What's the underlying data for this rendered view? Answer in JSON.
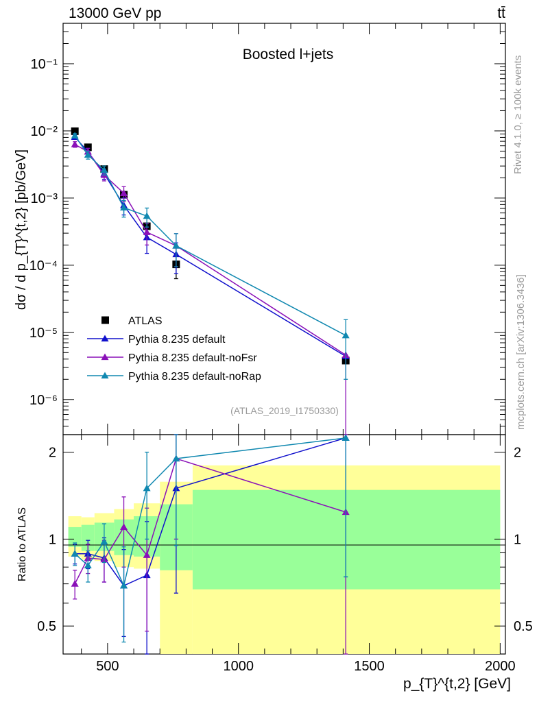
{
  "header": {
    "energy_label": "13000 GeV pp",
    "process_label": "tt̄"
  },
  "side_labels": {
    "rivet": "Rivet 4.1.0, ≥ 100k events",
    "mcplots": "mcplots.cern.ch [arXiv:1306.3436]"
  },
  "chart_data": [
    {
      "type": "scatter",
      "panel": "main",
      "title": "Boosted l+jets",
      "analysis_label": "(ATLAS_2019_I1750330)",
      "ylabel": "dσ / d p_{T}^{t,2} [pb/GeV]",
      "yscale": "log",
      "ylim": [
        3e-07,
        0.4
      ],
      "xlim": [
        330,
        2020
      ],
      "ytick_labels": [
        "10⁻⁶",
        "10⁻⁵",
        "10⁻⁴",
        "10⁻³",
        "10⁻²",
        "10⁻¹"
      ],
      "ytick_values": [
        1e-06,
        1e-05,
        0.0001,
        0.001,
        0.01,
        0.1
      ],
      "legend_position": "bottom-left",
      "series": [
        {
          "name": "ATLAS",
          "color": "#000000",
          "marker": "square",
          "x": [
            375,
            425,
            487,
            562,
            650,
            762,
            1410
          ],
          "y": [
            0.0099,
            0.0057,
            0.0027,
            0.00112,
            0.00038,
            0.000103,
            3.8e-06
          ],
          "err_lo": [
            0.0004,
            0.00025,
            0.00015,
            8e-05,
            4e-05,
            4e-05,
            0
          ],
          "err_hi": [
            0.0004,
            0.00025,
            0.00015,
            8e-05,
            4e-05,
            4e-05,
            0
          ]
        },
        {
          "name": "Pythia 8.235 default",
          "color": "#1010cc",
          "marker": "triangle",
          "x": [
            375,
            425,
            487,
            562,
            650,
            762,
            1410
          ],
          "y": [
            0.0081,
            0.0049,
            0.0023,
            0.00078,
            0.00026,
            0.000145,
            4.4e-06
          ],
          "err_lo": [
            0.0006,
            0.0006,
            0.0004,
            0.00022,
            0.00011,
            7e-05,
            0
          ],
          "err_hi": [
            0.0006,
            0.0006,
            0.0004,
            0.00022,
            0.00011,
            7e-05,
            0
          ]
        },
        {
          "name": "Pythia 8.235 default-noFsr",
          "color": "#8a10b8",
          "marker": "triangle",
          "x": [
            375,
            425,
            487,
            562,
            650,
            762,
            1410
          ],
          "y": [
            0.0063,
            0.0049,
            0.0022,
            0.00118,
            0.00031,
            0.000195,
            4.6e-06
          ],
          "err_lo": [
            0.0006,
            0.0006,
            0.0004,
            0.0003,
            0.00011,
            0.0001,
            4.5e-06
          ],
          "err_hi": [
            0.0006,
            0.0006,
            0.0004,
            0.0003,
            0.00011,
            0.0001,
            0
          ]
        },
        {
          "name": "Pythia 8.235 default-noRap",
          "color": "#1088b0",
          "marker": "triangle",
          "x": [
            375,
            425,
            487,
            562,
            650,
            762,
            1410
          ],
          "y": [
            0.0085,
            0.0044,
            0.0026,
            0.00072,
            0.00054,
            0.000195,
            9e-06
          ],
          "err_lo": [
            0.0006,
            0.0006,
            0.0004,
            0.0002,
            0.00017,
            0.0001,
            7e-06
          ],
          "err_hi": [
            0.0006,
            0.0006,
            0.0004,
            0.0002,
            0.00017,
            0.0001,
            6.5e-06
          ]
        }
      ]
    },
    {
      "type": "scatter",
      "panel": "ratio",
      "ylabel": "Ratio to ATLAS",
      "xlabel": "p_{T}^{t,2} [GeV]",
      "ylim": [
        0.4,
        2.3
      ],
      "xlim": [
        330,
        2020
      ],
      "ytick_labels": [
        "0.5",
        "1",
        "2"
      ],
      "ytick_values": [
        0.5,
        1,
        2
      ],
      "xtick_labels": [
        "500",
        "1000",
        "1500",
        "2000"
      ],
      "xtick_values": [
        500,
        1000,
        1500,
        2000
      ],
      "bins": [
        [
          350,
          400
        ],
        [
          400,
          450
        ],
        [
          450,
          525
        ],
        [
          525,
          600
        ],
        [
          600,
          700
        ],
        [
          700,
          825
        ],
        [
          825,
          2000
        ]
      ],
      "band_inner": {
        "color": "#99ff99",
        "lo": [
          0.94,
          0.91,
          0.91,
          0.88,
          0.87,
          0.78,
          0.67
        ],
        "hi": [
          1.1,
          1.12,
          1.14,
          1.17,
          1.2,
          1.32,
          1.48
        ]
      },
      "band_outer": {
        "color": "#ffff99",
        "lo": [
          0.87,
          0.85,
          0.84,
          0.8,
          0.79,
          0.4,
          0.4
        ],
        "hi": [
          1.2,
          1.19,
          1.23,
          1.27,
          1.33,
          1.58,
          1.8
        ]
      },
      "series": [
        {
          "name": "Pythia 8.235 default",
          "color": "#1010cc",
          "x": [
            375,
            425,
            487,
            562,
            650,
            762,
            1410
          ],
          "y": [
            0.89,
            0.89,
            0.86,
            0.69,
            0.75,
            1.5,
            2.24
          ],
          "err_lo": [
            0.07,
            0.1,
            0.15,
            0.23,
            0.4,
            0.85,
            1.5
          ],
          "err_hi": [
            0.07,
            0.1,
            0.15,
            0.23,
            0.4,
            0.85,
            0
          ]
        },
        {
          "name": "Pythia 8.235 default-noFsr",
          "color": "#8a10b8",
          "x": [
            375,
            425,
            487,
            562,
            650,
            762,
            1410
          ],
          "y": [
            0.7,
            0.86,
            0.85,
            1.1,
            0.88,
            1.9,
            1.24
          ],
          "err_lo": [
            0.08,
            0.1,
            0.14,
            0.3,
            0.4,
            0.9,
            1.0
          ],
          "err_hi": [
            0.08,
            0.1,
            0.14,
            0.3,
            0.4,
            0.9,
            0
          ]
        },
        {
          "name": "Pythia 8.235 default-noRap",
          "color": "#1088b0",
          "x": [
            375,
            425,
            487,
            562,
            650,
            762,
            1410
          ],
          "y": [
            0.89,
            0.81,
            0.98,
            0.69,
            1.5,
            1.9,
            2.24
          ],
          "err_lo": [
            0.08,
            0.1,
            0.15,
            0.25,
            0.5,
            0.95,
            1.5
          ],
          "err_hi": [
            0.08,
            0.1,
            0.15,
            0.25,
            0.5,
            0.95,
            0
          ]
        }
      ]
    }
  ]
}
